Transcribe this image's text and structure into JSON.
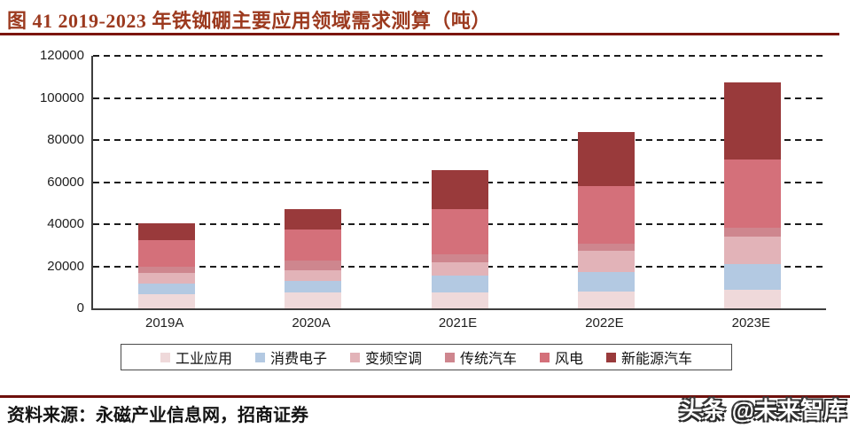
{
  "header": {
    "title": "图 41 2019-2023 年铁铷硼主要应用领域需求测算（吨）"
  },
  "footer": {
    "source": "资料来源：永磁产业信息网，招商证券",
    "watermark": "头条 @未来智库"
  },
  "colors": {
    "title_text": "#9c3a1f",
    "title_rule": "#7b150c",
    "footer_rule": "#6e100c",
    "axis_text": "#1f1f1f",
    "gridline": "#1c1c1c"
  },
  "chart_data": {
    "type": "bar",
    "stacked": true,
    "title": "2019-2023 年铁铷硼主要应用领域需求测算（吨）",
    "categories": [
      "2019A",
      "2020A",
      "2021E",
      "2022E",
      "2023E"
    ],
    "series": [
      {
        "name": "工业应用",
        "color": "#efd9da",
        "values": [
          6800,
          7700,
          7700,
          8100,
          8900
        ]
      },
      {
        "name": "消费电子",
        "color": "#b3c9e2",
        "values": [
          4800,
          5500,
          7700,
          9300,
          12300
        ]
      },
      {
        "name": "变频空调",
        "color": "#e2b3b8",
        "values": [
          5400,
          5100,
          6400,
          9800,
          12800
        ]
      },
      {
        "name": "传统汽车",
        "color": "#ce868e",
        "values": [
          2600,
          4300,
          3800,
          3400,
          4300
        ]
      },
      {
        "name": "风电",
        "color": "#d4707a",
        "values": [
          12700,
          14800,
          21700,
          27700,
          32300
        ]
      },
      {
        "name": "新能源汽车",
        "color": "#993a3b",
        "values": [
          8100,
          9800,
          18300,
          25500,
          37000
        ]
      }
    ],
    "totals": [
      40400,
      47200,
      65600,
      83800,
      107600
    ],
    "ylim": [
      0,
      120000
    ],
    "ytick": 20000,
    "xlabel": "",
    "ylabel": "",
    "grid": "dashed-horizontal",
    "legend_position": "bottom"
  }
}
